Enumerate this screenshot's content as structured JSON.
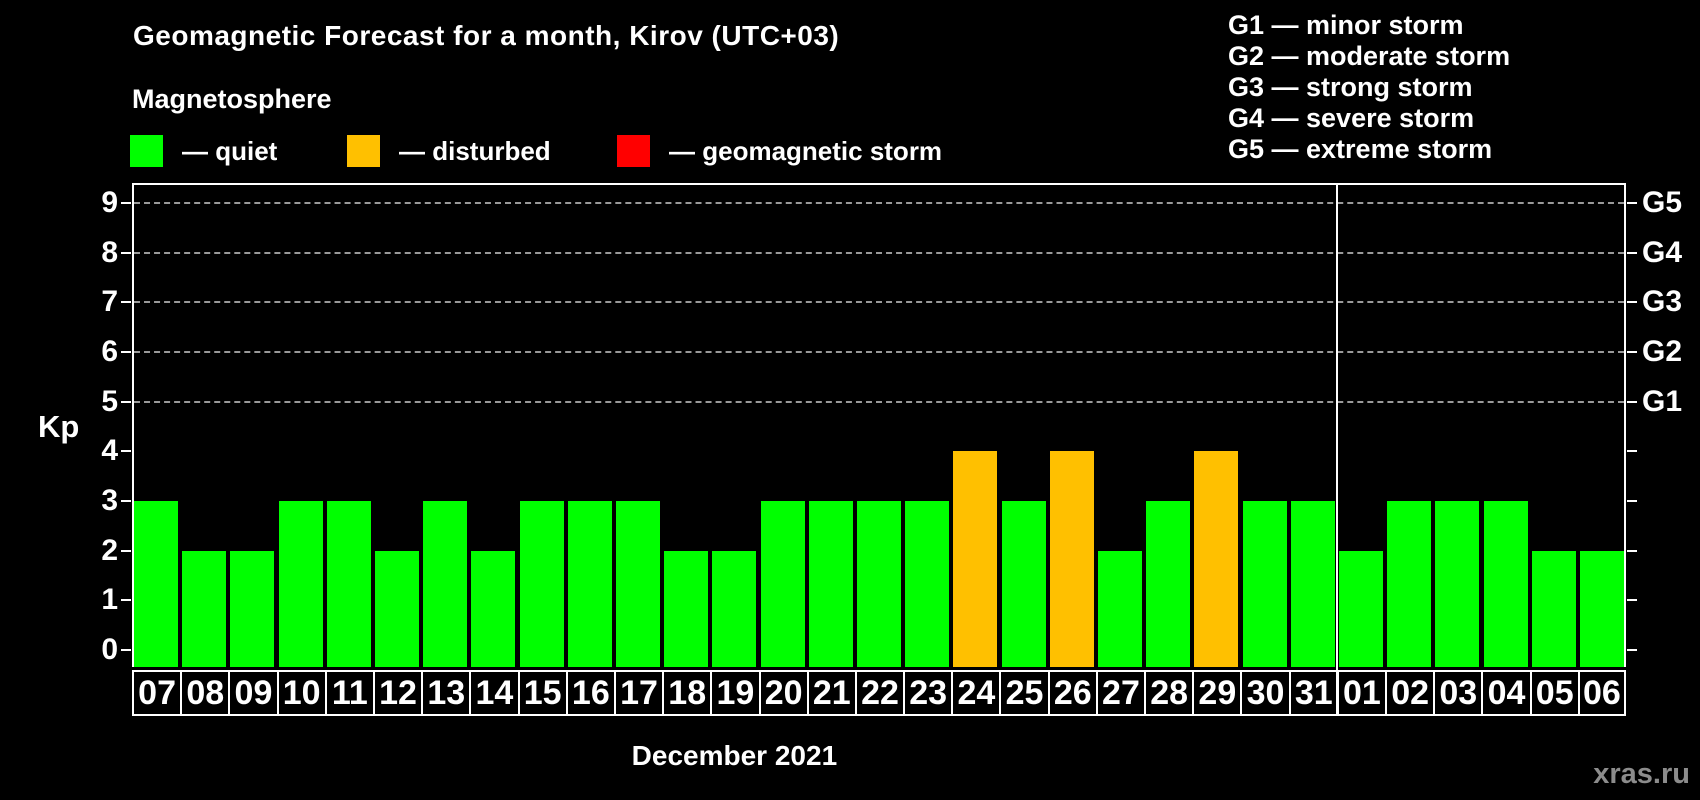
{
  "title": "Geomagnetic Forecast for a month, Kirov (UTC+03)",
  "subtitle": "Magnetosphere",
  "legend": {
    "items": [
      {
        "name": "quiet",
        "label": "— quiet",
        "color": "#00ff00"
      },
      {
        "name": "disturbed",
        "label": "— disturbed",
        "color": "#ffc000"
      },
      {
        "name": "geomagnetic-storm",
        "label": "— geomagnetic storm",
        "color": "#ff0000"
      }
    ]
  },
  "g_legend": {
    "items": [
      "G1 — minor storm",
      "G2 — moderate storm",
      "G3 — strong storm",
      "G4 — severe storm",
      "G5 — extreme storm"
    ]
  },
  "watermark": "xras.ru",
  "chart_data": {
    "type": "bar",
    "title": "Geomagnetic Forecast for a month, Kirov (UTC+03)",
    "ylabel": "Kp",
    "ylim": [
      0,
      9
    ],
    "y_ticks": [
      0,
      1,
      2,
      3,
      4,
      5,
      6,
      7,
      8,
      9
    ],
    "grid": "horizontal dashed lines at Kp 5 through 9",
    "legend_position": "top",
    "right_axis_labels": [
      {
        "label": "G1",
        "kp": 5
      },
      {
        "label": "G2",
        "kp": 6
      },
      {
        "label": "G3",
        "kp": 7
      },
      {
        "label": "G4",
        "kp": 8
      },
      {
        "label": "G5",
        "kp": 9
      }
    ],
    "month_label": "December 2021",
    "separator_after_index": 24,
    "colors": {
      "quiet": "#00ff00",
      "disturbed": "#ffc000",
      "storm": "#ff0000",
      "grid": "#9a9a9a",
      "axis": "#ffffff"
    },
    "days": [
      {
        "day": "07",
        "kp": 3,
        "status": "quiet"
      },
      {
        "day": "08",
        "kp": 2,
        "status": "quiet"
      },
      {
        "day": "09",
        "kp": 2,
        "status": "quiet"
      },
      {
        "day": "10",
        "kp": 3,
        "status": "quiet"
      },
      {
        "day": "11",
        "kp": 3,
        "status": "quiet"
      },
      {
        "day": "12",
        "kp": 2,
        "status": "quiet"
      },
      {
        "day": "13",
        "kp": 3,
        "status": "quiet"
      },
      {
        "day": "14",
        "kp": 2,
        "status": "quiet"
      },
      {
        "day": "15",
        "kp": 3,
        "status": "quiet"
      },
      {
        "day": "16",
        "kp": 3,
        "status": "quiet"
      },
      {
        "day": "17",
        "kp": 3,
        "status": "quiet"
      },
      {
        "day": "18",
        "kp": 2,
        "status": "quiet"
      },
      {
        "day": "19",
        "kp": 2,
        "status": "quiet"
      },
      {
        "day": "20",
        "kp": 3,
        "status": "quiet"
      },
      {
        "day": "21",
        "kp": 3,
        "status": "quiet"
      },
      {
        "day": "22",
        "kp": 3,
        "status": "quiet"
      },
      {
        "day": "23",
        "kp": 3,
        "status": "quiet"
      },
      {
        "day": "24",
        "kp": 4,
        "status": "disturbed"
      },
      {
        "day": "25",
        "kp": 3,
        "status": "quiet"
      },
      {
        "day": "26",
        "kp": 4,
        "status": "disturbed"
      },
      {
        "day": "27",
        "kp": 2,
        "status": "quiet"
      },
      {
        "day": "28",
        "kp": 3,
        "status": "quiet"
      },
      {
        "day": "29",
        "kp": 4,
        "status": "disturbed"
      },
      {
        "day": "30",
        "kp": 3,
        "status": "quiet"
      },
      {
        "day": "31",
        "kp": 3,
        "status": "quiet"
      },
      {
        "day": "01",
        "kp": 2,
        "status": "quiet"
      },
      {
        "day": "02",
        "kp": 3,
        "status": "quiet"
      },
      {
        "day": "03",
        "kp": 3,
        "status": "quiet"
      },
      {
        "day": "04",
        "kp": 3,
        "status": "quiet"
      },
      {
        "day": "05",
        "kp": 2,
        "status": "quiet"
      },
      {
        "day": "06",
        "kp": 2,
        "status": "quiet"
      }
    ]
  }
}
